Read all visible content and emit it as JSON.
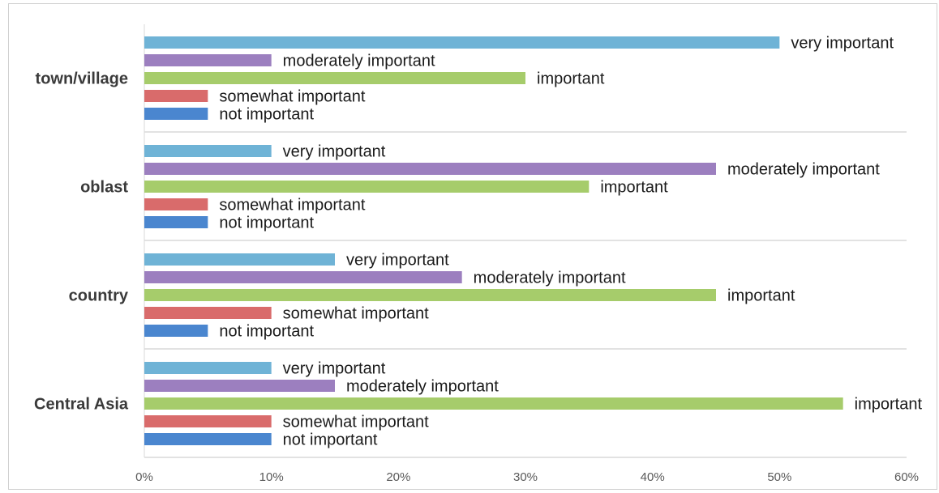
{
  "chart_data": {
    "type": "bar",
    "orientation": "horizontal",
    "categories": [
      "town/village",
      "oblast",
      "country",
      "Central Asia"
    ],
    "series": [
      {
        "name": "very important",
        "color": "#6fb3d6",
        "values": [
          50,
          10,
          15,
          10
        ]
      },
      {
        "name": "moderately important",
        "color": "#9c7fbf",
        "values": [
          10,
          45,
          25,
          15
        ]
      },
      {
        "name": "important",
        "color": "#a6cc6b",
        "values": [
          30,
          35,
          45,
          55
        ]
      },
      {
        "name": "somewhat important",
        "color": "#d96b6b",
        "values": [
          5,
          5,
          10,
          10
        ]
      },
      {
        "name": "not important",
        "color": "#4a86cf",
        "values": [
          5,
          5,
          5,
          10
        ]
      }
    ],
    "xlim": [
      0,
      60
    ],
    "x_ticks": [
      0,
      10,
      20,
      30,
      40,
      50,
      60
    ],
    "x_tick_labels": [
      "0%",
      "10%",
      "20%",
      "30%",
      "40%",
      "50%",
      "60%"
    ],
    "grid": "horizontal separators between categories",
    "legend": "none"
  }
}
